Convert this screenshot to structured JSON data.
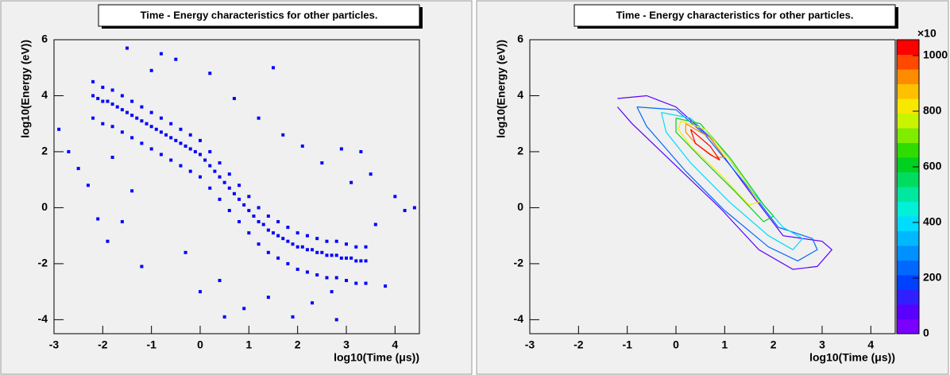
{
  "chart_data": [
    {
      "type": "scatter",
      "title": "Time - Energy characteristics for other particles.",
      "x_label": "log10(Time (μs))",
      "y_label": "log10(Energy (eV))",
      "color": "#0000ff",
      "xlim": [
        -3,
        4.5
      ],
      "ylim": [
        -4.5,
        6
      ],
      "xticks": [
        -3,
        -2,
        -1,
        0,
        1,
        2,
        3,
        4
      ],
      "yticks": [
        -4,
        -2,
        0,
        2,
        4,
        6
      ],
      "x": [
        -2.2,
        -2.1,
        -2.0,
        -1.9,
        -1.8,
        -1.7,
        -1.6,
        -1.5,
        -1.4,
        -1.3,
        -1.2,
        -1.1,
        -1.0,
        -0.9,
        -0.8,
        -0.7,
        -0.6,
        -0.5,
        -0.4,
        -0.3,
        -0.2,
        -0.1,
        0.0,
        0.1,
        0.2,
        0.3,
        0.4,
        0.5,
        0.6,
        0.7,
        0.8,
        0.9,
        1.0,
        1.1,
        1.2,
        1.3,
        1.4,
        1.5,
        1.6,
        1.7,
        1.8,
        1.9,
        2.0,
        2.1,
        2.2,
        2.3,
        2.4,
        2.5,
        2.6,
        2.7,
        2.8,
        2.9,
        3.0,
        3.1,
        3.2,
        3.3,
        3.4,
        -2.2,
        -2.0,
        -1.8,
        -1.6,
        -1.4,
        -1.2,
        -1.0,
        -0.8,
        -0.6,
        -0.4,
        -0.2,
        0.0,
        0.2,
        0.4,
        0.6,
        0.8,
        1.0,
        1.2,
        1.4,
        1.6,
        1.8,
        2.0,
        2.2,
        2.4,
        2.6,
        2.8,
        3.0,
        3.2,
        3.4,
        -2.2,
        -2.0,
        -1.8,
        -1.6,
        -1.4,
        -1.2,
        -1.0,
        -0.8,
        -0.6,
        -0.4,
        -0.2,
        0.0,
        0.2,
        0.4,
        0.6,
        0.8,
        1.0,
        1.2,
        1.4,
        1.6,
        1.8,
        2.0,
        2.2,
        2.4,
        2.6,
        2.8,
        3.0,
        3.2,
        3.4,
        -2.9,
        -2.7,
        -2.5,
        -2.3,
        -2.1,
        -1.9,
        -1.6,
        -1.4,
        -1.2,
        -1.0,
        -0.8,
        -0.5,
        -0.3,
        0.0,
        0.2,
        0.4,
        0.7,
        0.9,
        1.2,
        1.4,
        1.7,
        1.9,
        2.1,
        2.3,
        2.5,
        2.7,
        2.9,
        3.1,
        3.3,
        3.5,
        3.6,
        3.8,
        4.0,
        4.2,
        4.4,
        -1.5,
        -1.8,
        0.5,
        1.5,
        2.8
      ],
      "y": [
        4.0,
        3.9,
        3.8,
        3.8,
        3.7,
        3.6,
        3.5,
        3.4,
        3.3,
        3.2,
        3.1,
        3.0,
        2.9,
        2.8,
        2.7,
        2.6,
        2.5,
        2.4,
        2.3,
        2.2,
        2.1,
        2.0,
        1.9,
        1.7,
        1.5,
        1.3,
        1.1,
        0.9,
        0.7,
        0.5,
        0.3,
        0.1,
        -0.1,
        -0.3,
        -0.5,
        -0.6,
        -0.8,
        -0.9,
        -1.0,
        -1.1,
        -1.2,
        -1.3,
        -1.4,
        -1.4,
        -1.5,
        -1.5,
        -1.6,
        -1.6,
        -1.7,
        -1.7,
        -1.7,
        -1.8,
        -1.8,
        -1.8,
        -1.9,
        -1.9,
        -1.9,
        4.5,
        4.3,
        4.2,
        4.0,
        3.8,
        3.6,
        3.4,
        3.2,
        3.0,
        2.8,
        2.6,
        2.4,
        2.0,
        1.6,
        1.2,
        0.8,
        0.4,
        0.0,
        -0.3,
        -0.5,
        -0.7,
        -0.9,
        -1.0,
        -1.1,
        -1.2,
        -1.2,
        -1.3,
        -1.4,
        -1.4,
        3.2,
        3.0,
        2.9,
        2.7,
        2.5,
        2.3,
        2.1,
        1.9,
        1.7,
        1.5,
        1.3,
        1.1,
        0.7,
        0.3,
        -0.1,
        -0.5,
        -0.9,
        -1.3,
        -1.6,
        -1.8,
        -2.0,
        -2.2,
        -2.3,
        -2.4,
        -2.5,
        -2.5,
        -2.6,
        -2.7,
        -2.7,
        2.8,
        2.0,
        1.4,
        0.8,
        -0.4,
        -1.2,
        -0.5,
        0.6,
        -2.1,
        4.9,
        5.5,
        5.3,
        -1.6,
        -3.0,
        4.8,
        -2.6,
        3.9,
        -3.6,
        3.2,
        -3.2,
        2.6,
        -3.9,
        2.2,
        -3.4,
        1.6,
        -3.0,
        2.1,
        0.9,
        2.0,
        1.2,
        -0.6,
        -2.8,
        0.4,
        -0.1,
        0.0,
        5.7,
        1.8,
        -3.9,
        5.0,
        -4.0
      ]
    },
    {
      "type": "contour",
      "title": "Time - Energy characteristics for other particles.",
      "x_label": "log10(Time (μs))",
      "y_label": "log10(Energy (eV))",
      "xlim": [
        -3,
        4.5
      ],
      "ylim": [
        -4.5,
        6
      ],
      "xticks": [
        -3,
        -2,
        -1,
        0,
        1,
        2,
        3,
        4
      ],
      "yticks": [
        -4,
        -2,
        0,
        2,
        4,
        6
      ],
      "zlim": [
        0,
        1057
      ],
      "zticks": [
        0,
        200,
        400,
        600,
        800,
        1000
      ],
      "z_multiplier": "×10",
      "palette": [
        "#7a00ff",
        "#5a00ff",
        "#3020ff",
        "#0040ff",
        "#0068ff",
        "#0090ff",
        "#00b8ff",
        "#00dcff",
        "#00f0d8",
        "#00e8a0",
        "#00dc60",
        "#00d020",
        "#30dc00",
        "#80ec00",
        "#c8f400",
        "#f8e800",
        "#ffc000",
        "#ff8c00",
        "#ff4800",
        "#ff0000"
      ],
      "contours": [
        {
          "level": 80,
          "x": [
            -1.2,
            -0.6,
            0.0,
            0.7,
            1.5,
            2.2,
            3.0,
            3.2,
            2.9,
            2.4,
            1.7,
            0.9,
            0.0,
            -0.9,
            -1.2
          ],
          "y": [
            3.9,
            4.0,
            3.6,
            2.5,
            0.6,
            -1.0,
            -1.2,
            -1.5,
            -2.1,
            -2.2,
            -1.5,
            0.0,
            1.5,
            3.0,
            3.6
          ]
        },
        {
          "level": 220,
          "x": [
            -0.8,
            0.0,
            0.6,
            1.4,
            2.1,
            2.8,
            2.9,
            2.5,
            1.9,
            1.0,
            0.2,
            -0.6,
            -0.8
          ],
          "y": [
            3.6,
            3.5,
            2.6,
            0.9,
            -0.7,
            -1.1,
            -1.5,
            -1.9,
            -1.4,
            -0.1,
            1.3,
            2.9,
            3.6
          ]
        },
        {
          "level": 380,
          "x": [
            -0.3,
            0.3,
            0.9,
            1.6,
            2.2,
            2.6,
            2.4,
            1.9,
            1.1,
            0.3,
            -0.2,
            -0.3
          ],
          "y": [
            3.4,
            3.2,
            2.2,
            0.5,
            -0.7,
            -1.1,
            -1.5,
            -1.0,
            0.2,
            1.6,
            2.7,
            3.4
          ]
        },
        {
          "level": 600,
          "x": [
            0.0,
            0.5,
            1.1,
            1.8,
            2.0,
            1.8,
            1.2,
            0.5,
            0.0,
            0.0
          ],
          "y": [
            3.2,
            3.0,
            1.8,
            0.1,
            -0.3,
            -0.5,
            0.6,
            1.8,
            2.7,
            3.2
          ]
        },
        {
          "level": 800,
          "x": [
            0.1,
            0.6,
            1.2,
            1.7,
            1.5,
            0.9,
            0.3,
            0.05,
            0.1
          ],
          "y": [
            3.1,
            2.8,
            1.5,
            0.2,
            0.1,
            1.2,
            2.2,
            2.8,
            3.1
          ]
        },
        {
          "level": 930,
          "x": [
            0.2,
            0.7,
            1.0,
            0.8,
            0.4,
            0.2,
            0.2
          ],
          "y": [
            3.0,
            2.5,
            1.8,
            1.8,
            2.3,
            2.7,
            3.0
          ]
        },
        {
          "level": 1030,
          "x": [
            0.3,
            0.7,
            0.9,
            0.7,
            0.4,
            0.3
          ],
          "y": [
            2.8,
            2.2,
            1.7,
            1.9,
            2.3,
            2.8
          ]
        }
      ]
    }
  ]
}
